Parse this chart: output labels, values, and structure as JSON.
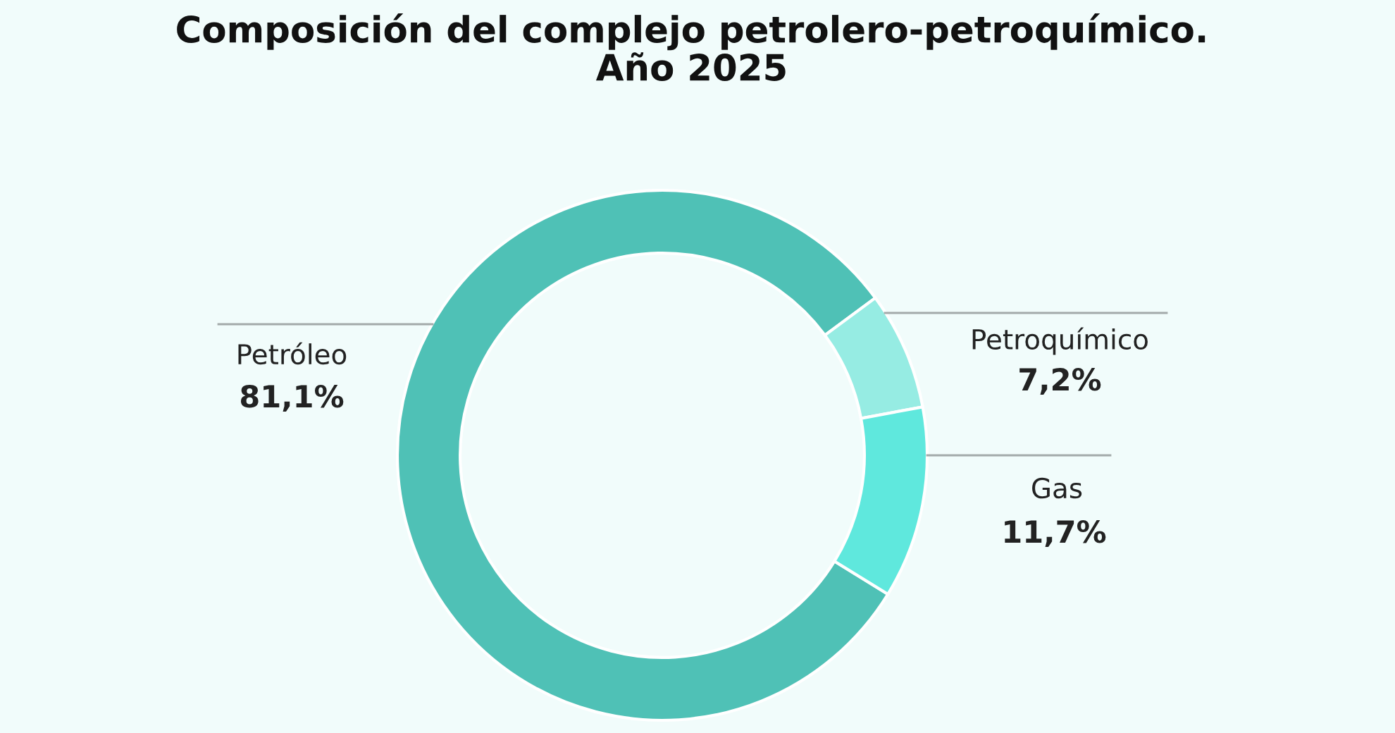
{
  "chart_data": {
    "type": "donut",
    "title": "Composición del complejo petrolero-petroquímico.\nAño 2025",
    "categories": [
      "Petróleo",
      "Petroquímico",
      "Gas"
    ],
    "values": [
      81.1,
      7.2,
      11.7
    ],
    "colors": [
      "#4fc1b6",
      "#96ece3",
      "#5fe8dd"
    ],
    "value_labels": [
      "81,1%",
      "7,2%",
      "11,7%"
    ]
  }
}
